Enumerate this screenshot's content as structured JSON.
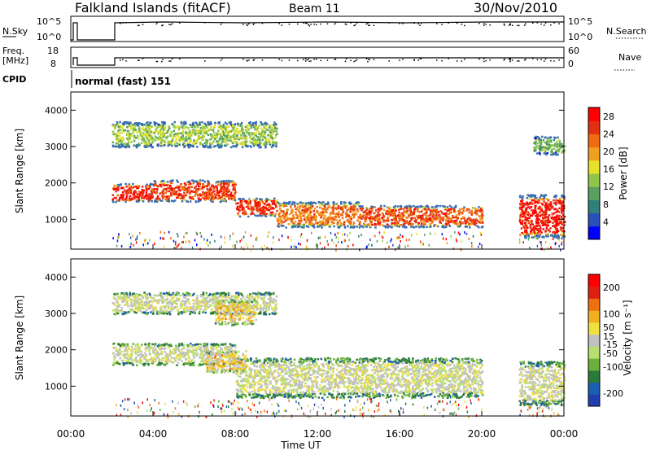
{
  "header": {
    "station": "Falkland Islands (fitACF)",
    "beam": "Beam 11",
    "date": "30/Nov/2010"
  },
  "noise_panel": {
    "left_label": "N.Sky",
    "left_ticks": [
      "10^5",
      "10^0"
    ],
    "right_ticks": [
      "10^5",
      "10^0"
    ],
    "right_label": "N.Search"
  },
  "freq_panel": {
    "left_label_1": "Freq.",
    "left_label_2": "[MHz]",
    "left_ticks": [
      "18",
      "8"
    ],
    "right_ticks": [
      "60",
      "0"
    ],
    "right_label": "Nave"
  },
  "cpid": {
    "label": "CPID",
    "value": "normal (fast) 151"
  },
  "colors": {
    "power_scale": [
      "#0000ff",
      "#2b4fb8",
      "#2f7f7a",
      "#5aa060",
      "#8fc64a",
      "#e6e12a",
      "#f0a020",
      "#f06a10",
      "#e23010",
      "#ff0000"
    ],
    "velocity_scale": [
      "#1f3fb0",
      "#1a5fb0",
      "#2a7a3a",
      "#6ab03a",
      "#b8e070",
      "#c0c0c0",
      "#f0e040",
      "#f0b020",
      "#f07010",
      "#e02010",
      "#ff0000"
    ]
  },
  "chart_data": [
    {
      "type": "heatmap",
      "name": "power",
      "xlabel": "Time UT",
      "ylabel": "Slant Range [km]",
      "x_ticks": [
        "00:00",
        "04:00",
        "08:00",
        "12:00",
        "16:00",
        "20:00",
        "00:00"
      ],
      "x_range_hours": [
        0,
        24
      ],
      "y_ticks": [
        1000,
        2000,
        3000,
        4000
      ],
      "ylim": [
        180,
        4500
      ],
      "colorbar": {
        "label": "Power [dB]",
        "ticks": [
          4,
          8,
          12,
          16,
          20,
          24,
          28
        ],
        "range": [
          0,
          30
        ]
      },
      "data_gaps_hours": [
        [
          0.4,
          1.9
        ],
        [
          20.1,
          21.7
        ]
      ],
      "echo_bands": [
        {
          "hours": [
            2.0,
            4.0
          ],
          "range_km": [
            1500,
            2000
          ],
          "power_db": 27
        },
        {
          "hours": [
            4.0,
            8.0
          ],
          "range_km": [
            1500,
            2100
          ],
          "power_db": 25
        },
        {
          "hours": [
            8.0,
            10.0
          ],
          "range_km": [
            1100,
            1600
          ],
          "power_db": 26
        },
        {
          "hours": [
            10.0,
            14.0
          ],
          "range_km": [
            800,
            1500
          ],
          "power_db": 22
        },
        {
          "hours": [
            14.0,
            20.0
          ],
          "range_km": [
            800,
            1400
          ],
          "power_db": 24
        },
        {
          "hours": [
            2.0,
            10.0
          ],
          "range_km": [
            3000,
            3700
          ],
          "power_db": 14
        },
        {
          "hours": [
            21.8,
            24.0
          ],
          "range_km": [
            500,
            1700
          ],
          "power_db": 27
        },
        {
          "hours": [
            22.5,
            24.0
          ],
          "range_km": [
            2800,
            3300
          ],
          "power_db": 12
        }
      ]
    },
    {
      "type": "heatmap",
      "name": "velocity",
      "xlabel": "Time UT",
      "ylabel": "Slant Range [km]",
      "x_ticks": [
        "00:00",
        "04:00",
        "08:00",
        "12:00",
        "16:00",
        "20:00",
        "00:00"
      ],
      "x_range_hours": [
        0,
        24
      ],
      "y_ticks": [
        1000,
        2000,
        3000,
        4000
      ],
      "ylim": [
        180,
        4500
      ],
      "colorbar": {
        "label": "Velocity [m s⁻¹]",
        "ticks": [
          200,
          100,
          50,
          15,
          -15,
          -50,
          -100,
          -200
        ],
        "range": [
          -250,
          250
        ]
      },
      "echo_bands": [
        {
          "hours": [
            2.0,
            8.0
          ],
          "range_km": [
            1600,
            2200
          ],
          "velocity_ms": 0
        },
        {
          "hours": [
            8.0,
            20.0
          ],
          "range_km": [
            700,
            1800
          ],
          "velocity_ms": 0
        },
        {
          "hours": [
            2.0,
            10.0
          ],
          "range_km": [
            3000,
            3600
          ],
          "velocity_ms": 0
        },
        {
          "hours": [
            6.5,
            8.5
          ],
          "range_km": [
            1400,
            2000
          ],
          "velocity_ms": 60
        },
        {
          "hours": [
            7.0,
            9.0
          ],
          "range_km": [
            2700,
            3400
          ],
          "velocity_ms": 60
        },
        {
          "hours": [
            21.8,
            24.0
          ],
          "range_km": [
            500,
            1700
          ],
          "velocity_ms": 0
        }
      ]
    }
  ]
}
